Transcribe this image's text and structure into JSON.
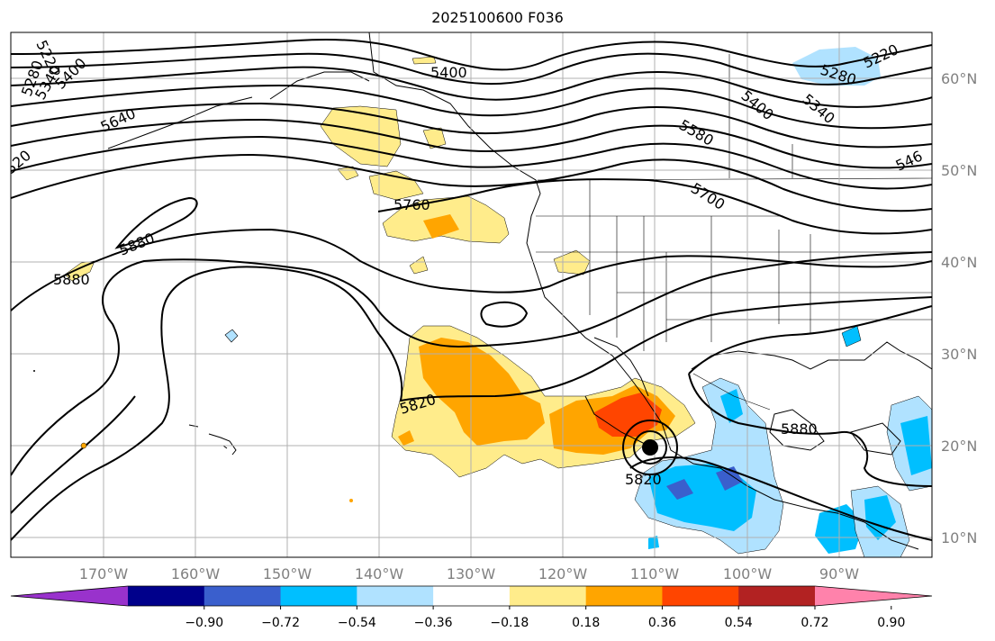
{
  "title": "2025100600 F036",
  "lon_ticks": [
    "170°W",
    "160°W",
    "150°W",
    "140°W",
    "130°W",
    "120°W",
    "110°W",
    "100°W",
    "90°W"
  ],
  "lat_ticks": [
    "60°N",
    "50°N",
    "40°N",
    "30°N",
    "20°N",
    "10°N"
  ],
  "colorbar": {
    "ticks": [
      "−0.90",
      "−0.72",
      "−0.54",
      "−0.36",
      "−0.18",
      "0.18",
      "0.36",
      "0.54",
      "0.72",
      "0.90"
    ],
    "colors": [
      "#9932cc",
      "#00008b",
      "#3a5fcd",
      "#00bfff",
      "#b0e2ff",
      "#ffffff",
      "#ffec8b",
      "#ffa500",
      "#ff4500",
      "#b22222",
      "#ff82ab"
    ]
  },
  "contour_labels": {
    "l5400_top": "5400",
    "l5220_ne": "5220",
    "l5280_ne": "5280",
    "l5400_ne": "5400",
    "l5340_ne": "5340",
    "l5580": "5580",
    "l546_edge": "546",
    "l5700": "5700",
    "l5640": "5640",
    "l5760": "5760",
    "l5880_w": "5880",
    "l5880_far": "5880",
    "l5820_mid": "5820",
    "l5880_gulf": "5880",
    "l5820_low": "5820",
    "l5220_nw": "5220",
    "l5280_nw": "5280",
    "l5340_nw": "5340",
    "l5400_nw": "5400",
    "l520_w": "520"
  }
}
